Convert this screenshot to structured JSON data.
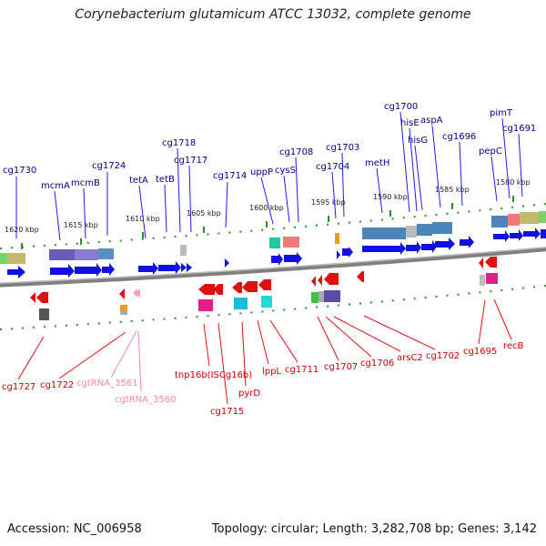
{
  "header": {
    "title": "Corynebacterium glutamicum ATCC 13032, complete genome"
  },
  "footer": {
    "accession": "Accession: NC_006958",
    "summary": "Topology: circular; Length: 3,282,708 bp; Genes: 3,142"
  },
  "colors": {
    "forward_gene": "#1010e0",
    "reverse_gene": "#e01010",
    "forward_label": "#00008b",
    "reverse_label": "#cc0000",
    "rna_label": "#ee88bb",
    "backbone": "#808080"
  },
  "ticks": [
    "1620 kbp",
    "1615 kbp",
    "1610 kbp",
    "1605 kbp",
    "1600 kbp",
    "1595 kbp",
    "1590 kbp",
    "1585 kbp",
    "1580 kbp"
  ],
  "forward_labels": [
    "cg1730",
    "mcmA",
    "mcmB",
    "cg1724",
    "tetA",
    "tetB",
    "cg1718",
    "cg1717",
    "cg1714",
    "uppP",
    "cysS",
    "cg1708",
    "cg1704",
    "cg1703",
    "metH",
    "cg1700",
    "hisE",
    "hisG",
    "aspA",
    "cg1696",
    "pepC",
    "pimT",
    "cg1691"
  ],
  "reverse_labels": [
    "cg1727",
    "cg1722",
    "cgtRNA_3561",
    "cgtRNA_3560",
    "tnp16b(ISCg16b)",
    "cg1715",
    "pyrD",
    "lppL",
    "cg1711",
    "cg1707",
    "cg1706",
    "arsC2",
    "cg1702",
    "cg1695",
    "recB"
  ]
}
